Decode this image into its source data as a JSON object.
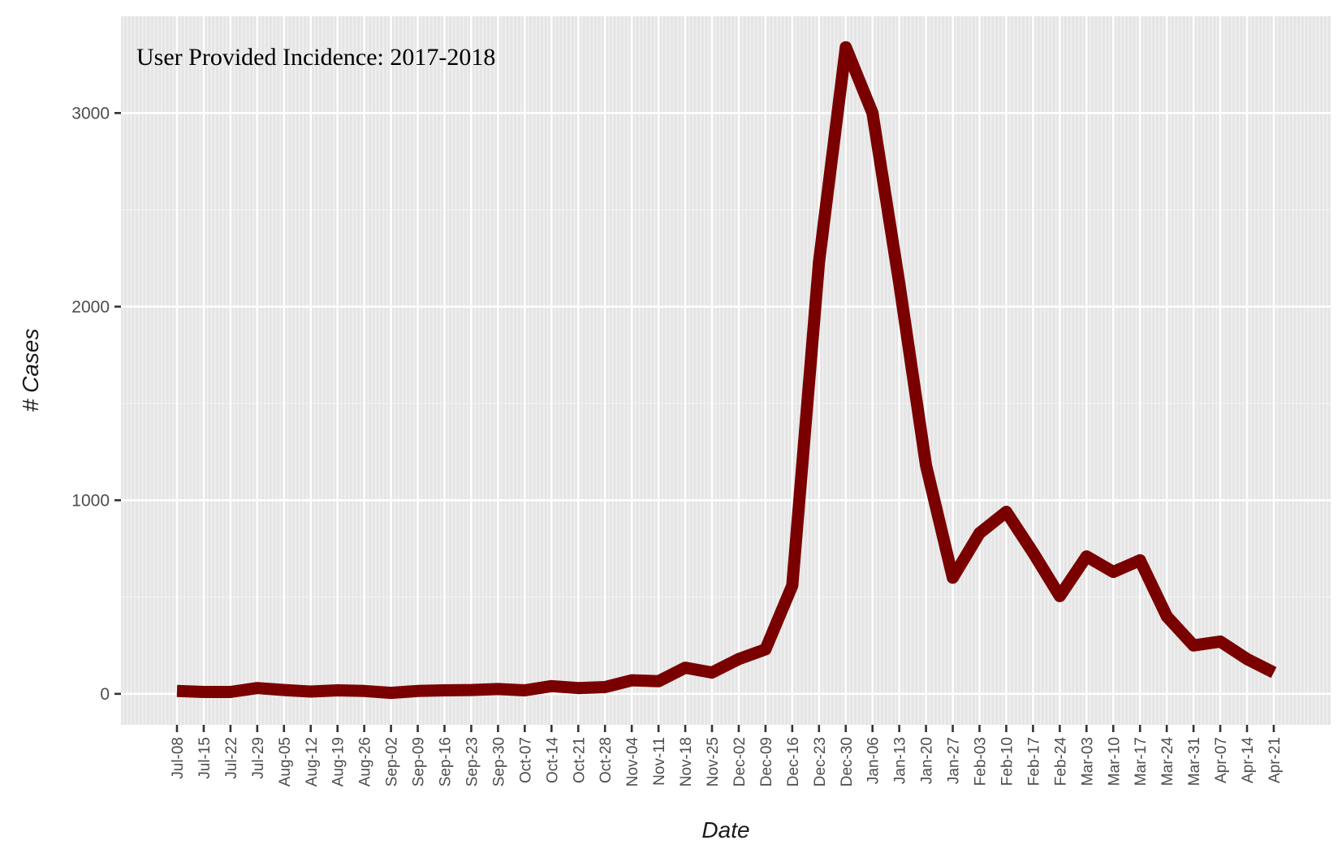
{
  "chart_data": {
    "type": "line",
    "title": "",
    "annotation": "User Provided Incidence: 2017-2018",
    "xlabel": "Date",
    "ylabel": "# Cases",
    "ylim": [
      -160,
      3500
    ],
    "y_ticks": [
      0,
      1000,
      2000,
      3000
    ],
    "grid": true,
    "legend": "none",
    "line_color": "#7a0000",
    "panel_bg": "#e5e5e5",
    "categories": [
      "Jul-08",
      "Jul-15",
      "Jul-22",
      "Jul-29",
      "Aug-05",
      "Aug-12",
      "Aug-19",
      "Aug-26",
      "Sep-02",
      "Sep-09",
      "Sep-16",
      "Sep-23",
      "Sep-30",
      "Oct-07",
      "Oct-14",
      "Oct-21",
      "Oct-28",
      "Nov-04",
      "Nov-11",
      "Nov-18",
      "Nov-25",
      "Dec-02",
      "Dec-09",
      "Dec-16",
      "Dec-23",
      "Dec-30",
      "Jan-06",
      "Jan-13",
      "Jan-20",
      "Jan-27",
      "Feb-03",
      "Feb-10",
      "Feb-17",
      "Feb-24",
      "Mar-03",
      "Mar-10",
      "Mar-17",
      "Mar-24",
      "Mar-31",
      "Apr-07",
      "Apr-14",
      "Apr-21"
    ],
    "series": [
      {
        "values": [
          15,
          10,
          10,
          30,
          20,
          12,
          18,
          15,
          5,
          15,
          18,
          20,
          25,
          18,
          40,
          30,
          35,
          70,
          65,
          135,
          110,
          180,
          230,
          560,
          2230,
          3340,
          3000,
          2120,
          1180,
          600,
          830,
          940,
          730,
          505,
          710,
          630,
          690,
          400,
          250,
          270,
          180,
          110
        ]
      }
    ]
  }
}
